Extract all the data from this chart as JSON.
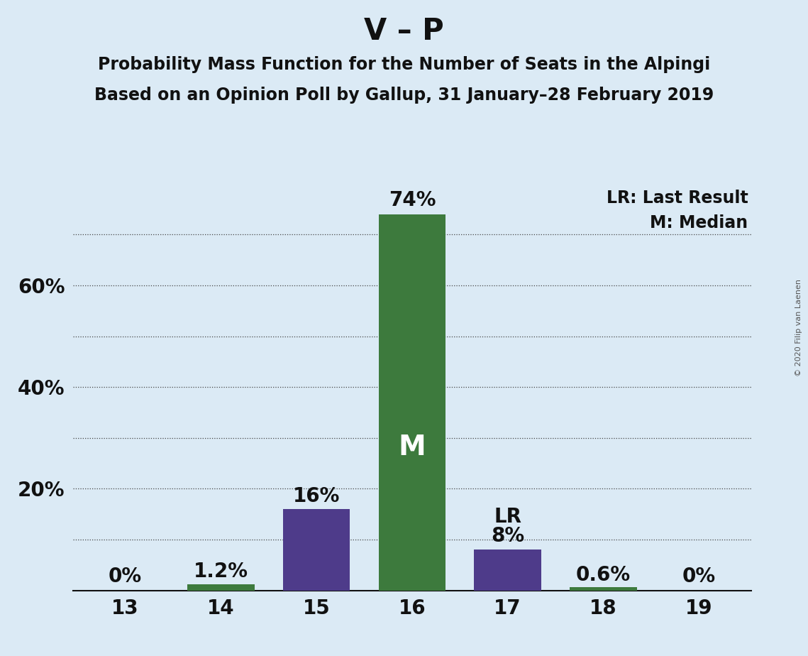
{
  "title": "V – P",
  "subtitle1": "Probability Mass Function for the Number of Seats in the Alpingi",
  "subtitle2": "Based on an Opinion Poll by Gallup, 31 January–28 February 2019",
  "copyright": "© 2020 Filip van Laenen",
  "categories": [
    13,
    14,
    15,
    16,
    17,
    18,
    19
  ],
  "values": [
    0.0,
    1.2,
    16.0,
    74.0,
    8.0,
    0.6,
    0.0
  ],
  "labels": [
    "0%",
    "1.2%",
    "16%",
    "74%",
    "8%",
    "0.6%",
    "0%"
  ],
  "bar_colors": [
    "#3d7a3d",
    "#3d7a3d",
    "#4e3b8a",
    "#3d7a3d",
    "#4e3b8a",
    "#3d7a3d",
    "#3d7a3d"
  ],
  "median_bar_index": 3,
  "last_result_bar_index": 4,
  "median_label": "M",
  "last_result_label": "LR",
  "legend_lr": "LR: Last Result",
  "legend_m": "M: Median",
  "background_color": "#dbeaf5",
  "ylim": [
    0,
    80
  ],
  "grid_yticks": [
    10,
    20,
    30,
    40,
    50,
    60,
    70
  ],
  "ytick_values": [
    20,
    40,
    60
  ],
  "ytick_labels": [
    "20%",
    "40%",
    "60%"
  ],
  "title_fontsize": 30,
  "subtitle_fontsize": 17,
  "label_fontsize": 17,
  "tick_fontsize": 20,
  "annotation_fontsize": 20,
  "median_label_fontsize": 28
}
